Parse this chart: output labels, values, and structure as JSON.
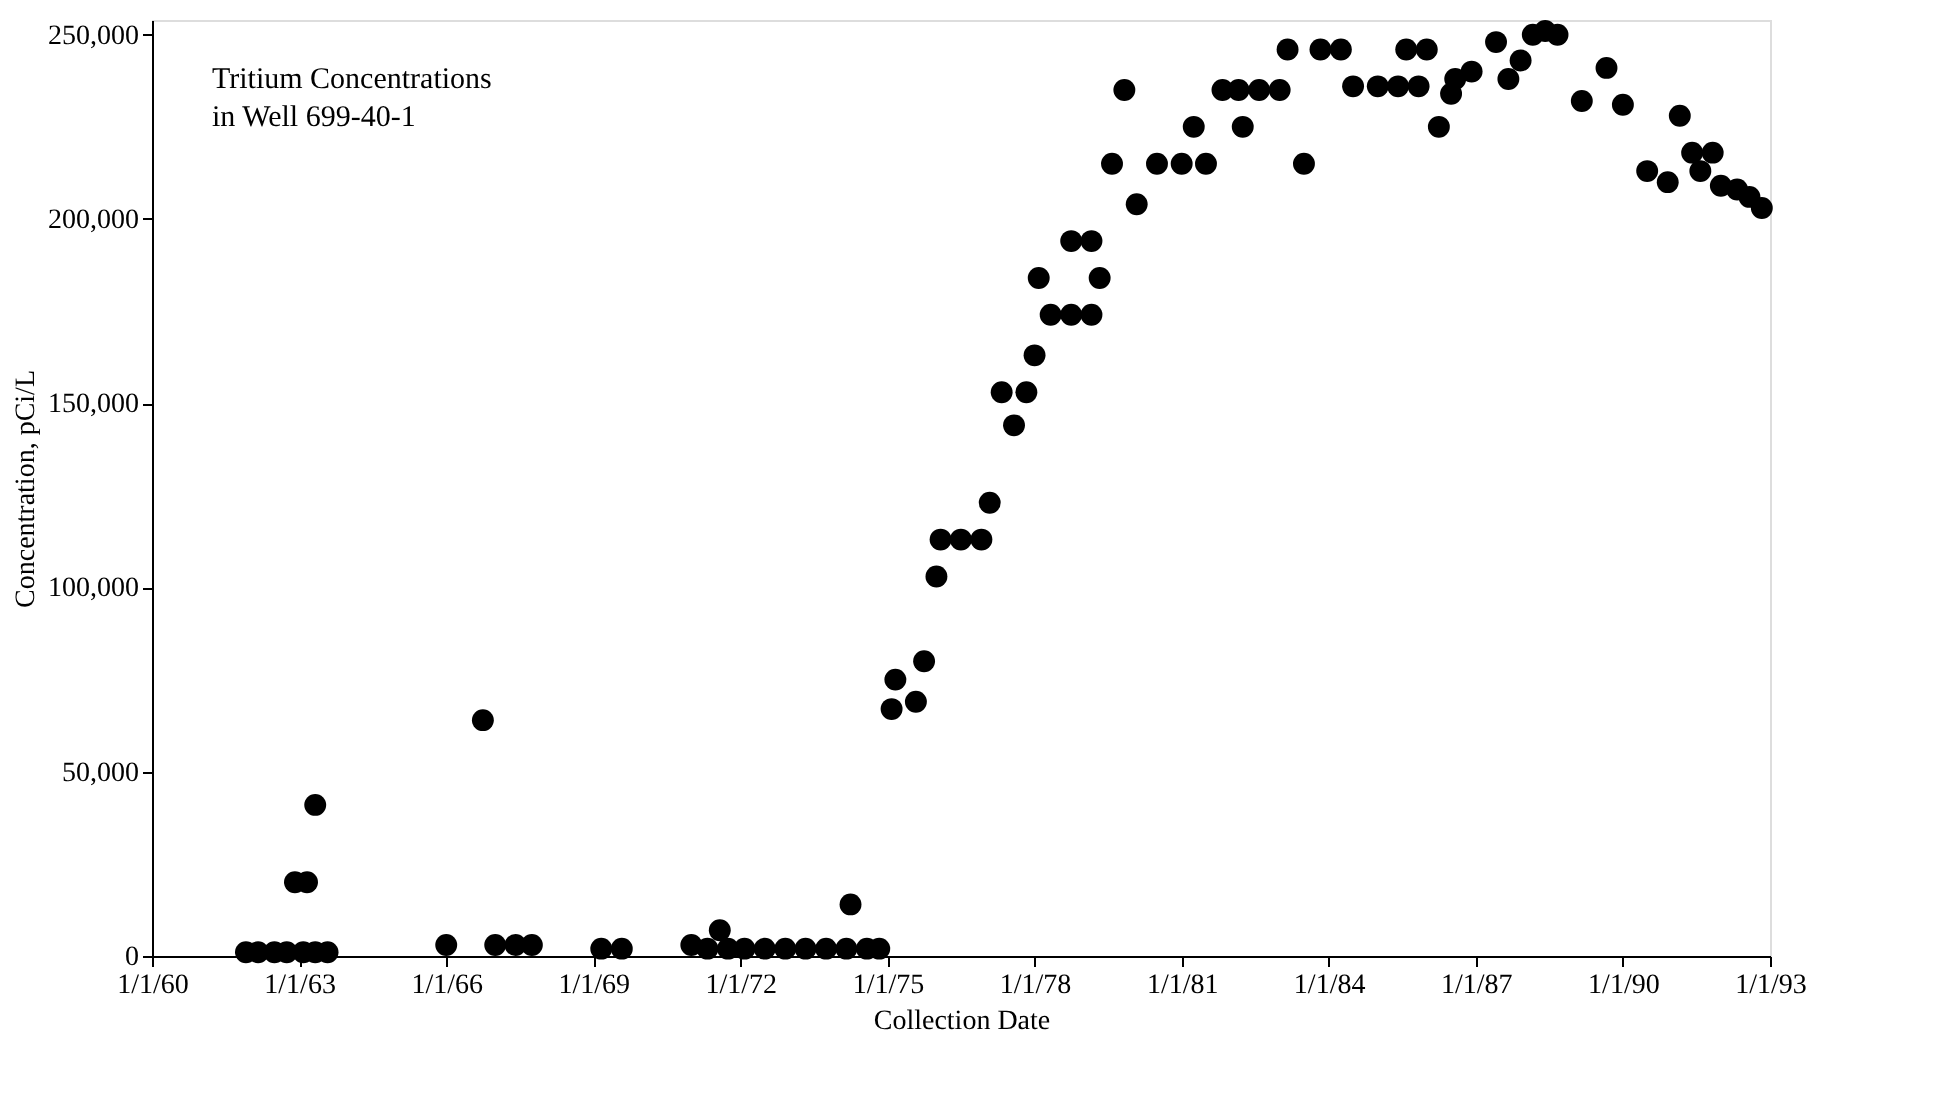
{
  "chart_data": {
    "type": "scatter",
    "title": "Tritium Concentrations in Well 699-40-1",
    "xlabel": "Collection Date",
    "ylabel": "Concentration, pCi/L",
    "xlim": [
      "1960-01-01",
      "1993-01-01"
    ],
    "ylim": [
      0,
      254000
    ],
    "xticks": [
      {
        "value": "1960-01-01",
        "label": "1/1/60"
      },
      {
        "value": "1963-01-01",
        "label": "1/1/63"
      },
      {
        "value": "1966-01-01",
        "label": "1/1/66"
      },
      {
        "value": "1969-01-01",
        "label": "1/1/69"
      },
      {
        "value": "1972-01-01",
        "label": "1/1/72"
      },
      {
        "value": "1975-01-01",
        "label": "1/1/75"
      },
      {
        "value": "1978-01-01",
        "label": "1/1/78"
      },
      {
        "value": "1981-01-01",
        "label": "1/1/81"
      },
      {
        "value": "1984-01-01",
        "label": "1/1/84"
      },
      {
        "value": "1987-01-01",
        "label": "1/1/87"
      },
      {
        "value": "1990-01-01",
        "label": "1/1/90"
      },
      {
        "value": "1993-01-01",
        "label": "1/1/93"
      }
    ],
    "yticks": [
      {
        "value": 0,
        "label": "0"
      },
      {
        "value": 50000,
        "label": "50,000"
      },
      {
        "value": 100000,
        "label": "100,000"
      },
      {
        "value": 150000,
        "label": "150,000"
      },
      {
        "value": 200000,
        "label": "200,000"
      },
      {
        "value": 250000,
        "label": "250,000"
      }
    ],
    "grid": false,
    "marker": "circle",
    "series": [
      {
        "color": "#000000",
        "x": [
          "1961-12",
          "1962-03",
          "1962-07",
          "1962-10",
          "1963-02",
          "1963-05",
          "1963-08",
          "1962-12",
          "1963-03",
          "1963-05",
          "1966-01",
          "1966-10",
          "1967-01",
          "1967-06",
          "1967-10",
          "1969-03",
          "1969-08",
          "1971-01",
          "1971-05",
          "1971-08",
          "1971-10",
          "1972-02",
          "1972-07",
          "1972-12",
          "1973-05",
          "1973-10",
          "1974-03",
          "1974-04",
          "1974-08",
          "1974-11",
          "1975-02",
          "1975-03",
          "1975-08",
          "1975-10",
          "1976-01",
          "1976-02",
          "1976-07",
          "1976-12",
          "1977-02",
          "1977-05",
          "1977-08",
          "1977-11",
          "1978-01",
          "1978-02",
          "1978-05",
          "1978-10",
          "1978-10",
          "1979-03",
          "1979-03",
          "1979-05",
          "1979-08",
          "1979-11",
          "1980-02",
          "1980-07",
          "1981-01",
          "1981-04",
          "1981-07",
          "1981-11",
          "1982-03",
          "1982-04",
          "1982-08",
          "1983-01",
          "1983-03",
          "1983-07",
          "1983-11",
          "1984-04",
          "1984-07",
          "1985-01",
          "1985-06",
          "1985-08",
          "1985-11",
          "1986-01",
          "1986-04",
          "1986-07",
          "1986-08",
          "1986-12",
          "1987-06",
          "1987-09",
          "1987-12",
          "1988-03",
          "1988-06",
          "1988-09",
          "1989-03",
          "1989-09",
          "1990-01",
          "1990-07",
          "1990-12",
          "1991-03",
          "1991-06",
          "1991-08",
          "1991-11",
          "1992-01",
          "1992-05",
          "1992-08",
          "1992-11"
        ],
        "values": [
          1000,
          1000,
          1000,
          1000,
          1000,
          1000,
          1000,
          20000,
          20000,
          41000,
          3000,
          64000,
          3000,
          3000,
          3000,
          2000,
          2000,
          3000,
          2000,
          7000,
          2000,
          2000,
          2000,
          2000,
          2000,
          2000,
          2000,
          14000,
          2000,
          2000,
          67000,
          75000,
          69000,
          80000,
          103000,
          113000,
          113000,
          113000,
          123000,
          153000,
          144000,
          153000,
          163000,
          184000,
          174000,
          174000,
          194000,
          174000,
          194000,
          184000,
          215000,
          235000,
          204000,
          215000,
          215000,
          225000,
          215000,
          235000,
          235000,
          225000,
          235000,
          235000,
          246000,
          215000,
          246000,
          246000,
          236000,
          236000,
          236000,
          246000,
          236000,
          246000,
          225000,
          234000,
          238000,
          240000,
          248000,
          238000,
          243000,
          250000,
          251000,
          250000,
          232000,
          241000,
          231000,
          213000,
          210000,
          228000,
          218000,
          213000,
          218000,
          209000,
          208000,
          206000,
          203000
        ]
      }
    ]
  }
}
